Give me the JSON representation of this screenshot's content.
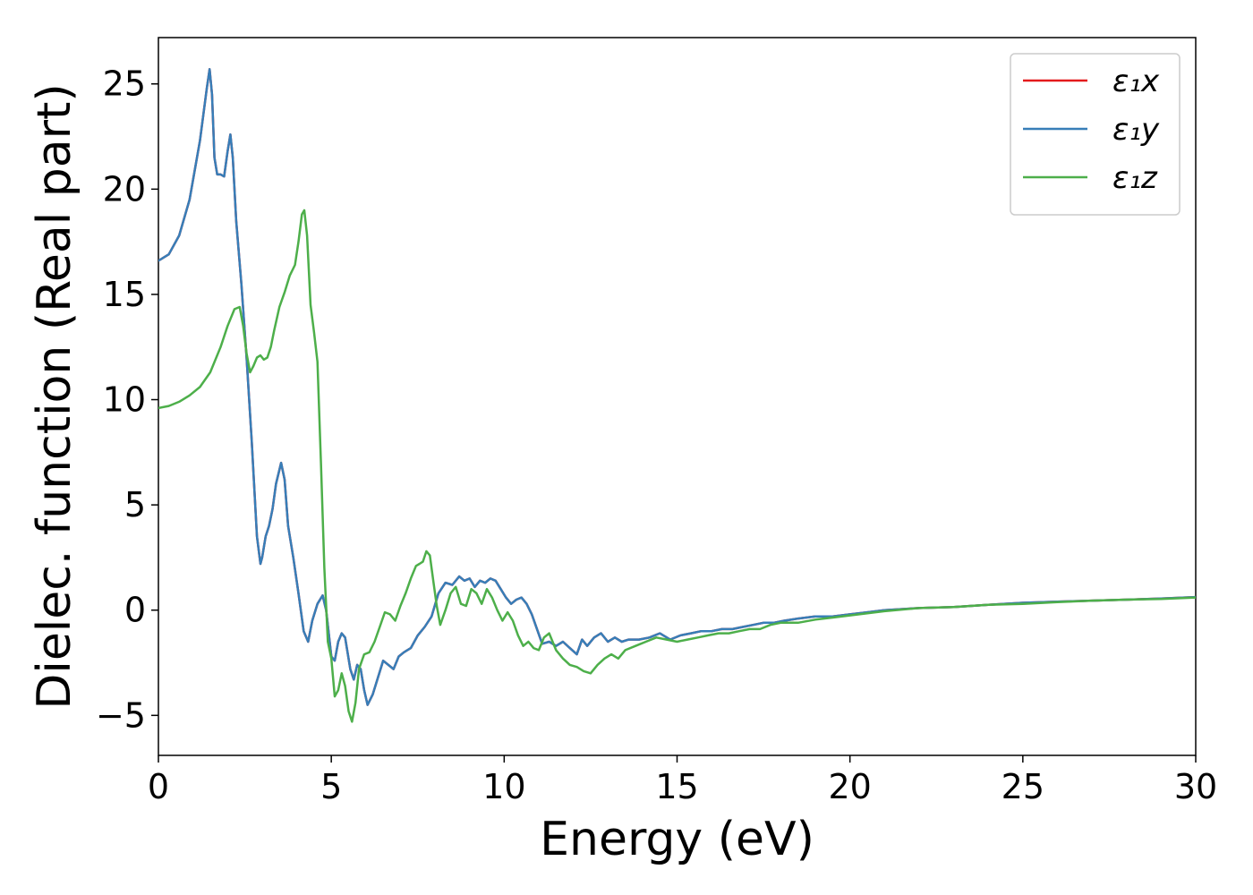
{
  "chart_data": {
    "type": "line",
    "xlabel": "Energy (eV)",
    "ylabel": "Dielec. function (Real part)",
    "xlim": [
      0,
      30
    ],
    "ylim": [
      -6.9,
      27.2
    ],
    "xticks": [
      0,
      5,
      10,
      15,
      20,
      25,
      30
    ],
    "xtick_labels": [
      "0",
      "5",
      "10",
      "15",
      "20",
      "25",
      "30"
    ],
    "yticks": [
      -5,
      0,
      5,
      10,
      15,
      20,
      25
    ],
    "ytick_labels": [
      "−5",
      "0",
      "5",
      "10",
      "15",
      "20",
      "25"
    ],
    "grid": false,
    "legend_position": "top-right",
    "series": [
      {
        "name": "ε₁x",
        "color": "#e41a1c",
        "x": [
          0,
          0.3,
          0.6,
          0.9,
          1.2,
          1.4,
          1.48,
          1.55,
          1.62,
          1.7,
          1.8,
          1.9,
          2.0,
          2.08,
          2.15,
          2.25,
          2.4,
          2.55,
          2.7,
          2.85,
          2.95,
          3.0,
          3.1,
          3.2,
          3.3,
          3.4,
          3.55,
          3.65,
          3.75,
          3.9,
          4.05,
          4.2,
          4.33,
          4.45,
          4.6,
          4.75,
          4.85,
          5.0,
          5.1,
          5.2,
          5.3,
          5.4,
          5.55,
          5.65,
          5.75,
          5.85,
          5.95,
          6.05,
          6.2,
          6.35,
          6.5,
          6.65,
          6.8,
          6.95,
          7.1,
          7.3,
          7.5,
          7.7,
          7.9,
          8.1,
          8.3,
          8.5,
          8.7,
          8.85,
          9.0,
          9.15,
          9.3,
          9.45,
          9.6,
          9.75,
          9.9,
          10.05,
          10.2,
          10.35,
          10.5,
          10.65,
          10.8,
          10.95,
          11.1,
          11.3,
          11.5,
          11.7,
          11.9,
          12.1,
          12.25,
          12.4,
          12.6,
          12.8,
          13.0,
          13.2,
          13.4,
          13.6,
          13.9,
          14.2,
          14.5,
          14.8,
          15.1,
          15.4,
          15.7,
          16.0,
          16.3,
          16.6,
          16.9,
          17.2,
          17.5,
          17.8,
          18.1,
          18.5,
          19.0,
          19.5,
          20.0,
          20.5,
          21.0,
          22.0,
          23.0,
          24.0,
          25.0,
          26.0,
          27.0,
          28.0,
          29.0,
          30.0
        ],
        "y": [
          16.6,
          16.9,
          17.8,
          19.5,
          22.3,
          24.8,
          25.7,
          24.5,
          21.5,
          20.7,
          20.7,
          20.6,
          21.8,
          22.6,
          21.5,
          18.5,
          15.5,
          12.0,
          8.0,
          3.5,
          2.2,
          2.5,
          3.5,
          4.0,
          4.8,
          6.0,
          7.0,
          6.2,
          4.0,
          2.5,
          0.8,
          -1.0,
          -1.5,
          -0.5,
          0.3,
          0.7,
          0.0,
          -2.2,
          -2.4,
          -1.5,
          -1.1,
          -1.3,
          -2.8,
          -3.3,
          -2.6,
          -2.8,
          -3.8,
          -4.5,
          -4.0,
          -3.2,
          -2.4,
          -2.6,
          -2.8,
          -2.2,
          -2.0,
          -1.8,
          -1.2,
          -0.8,
          -0.3,
          0.8,
          1.3,
          1.2,
          1.6,
          1.4,
          1.5,
          1.1,
          1.4,
          1.3,
          1.5,
          1.4,
          1.0,
          0.6,
          0.3,
          0.5,
          0.6,
          0.3,
          -0.2,
          -0.9,
          -1.6,
          -1.5,
          -1.7,
          -1.5,
          -1.8,
          -2.1,
          -1.4,
          -1.7,
          -1.3,
          -1.1,
          -1.5,
          -1.3,
          -1.5,
          -1.4,
          -1.4,
          -1.3,
          -1.1,
          -1.4,
          -1.2,
          -1.1,
          -1.0,
          -1.0,
          -0.9,
          -0.9,
          -0.8,
          -0.7,
          -0.6,
          -0.6,
          -0.5,
          -0.4,
          -0.3,
          -0.3,
          -0.2,
          -0.1,
          -0.0,
          0.1,
          0.15,
          0.25,
          0.35,
          0.4,
          0.45,
          0.5,
          0.55,
          0.62
        ]
      },
      {
        "name": "ε₁y",
        "color": "#377eb8",
        "x": [
          0,
          0.3,
          0.6,
          0.9,
          1.2,
          1.4,
          1.48,
          1.55,
          1.62,
          1.7,
          1.8,
          1.9,
          2.0,
          2.08,
          2.15,
          2.25,
          2.4,
          2.55,
          2.7,
          2.85,
          2.95,
          3.0,
          3.1,
          3.2,
          3.3,
          3.4,
          3.55,
          3.65,
          3.75,
          3.9,
          4.05,
          4.2,
          4.33,
          4.45,
          4.6,
          4.75,
          4.85,
          5.0,
          5.1,
          5.2,
          5.3,
          5.4,
          5.55,
          5.65,
          5.75,
          5.85,
          5.95,
          6.05,
          6.2,
          6.35,
          6.5,
          6.65,
          6.8,
          6.95,
          7.1,
          7.3,
          7.5,
          7.7,
          7.9,
          8.1,
          8.3,
          8.5,
          8.7,
          8.85,
          9.0,
          9.15,
          9.3,
          9.45,
          9.6,
          9.75,
          9.9,
          10.05,
          10.2,
          10.35,
          10.5,
          10.65,
          10.8,
          10.95,
          11.1,
          11.3,
          11.5,
          11.7,
          11.9,
          12.1,
          12.25,
          12.4,
          12.6,
          12.8,
          13.0,
          13.2,
          13.4,
          13.6,
          13.9,
          14.2,
          14.5,
          14.8,
          15.1,
          15.4,
          15.7,
          16.0,
          16.3,
          16.6,
          16.9,
          17.2,
          17.5,
          17.8,
          18.1,
          18.5,
          19.0,
          19.5,
          20.0,
          20.5,
          21.0,
          22.0,
          23.0,
          24.0,
          25.0,
          26.0,
          27.0,
          28.0,
          29.0,
          30.0
        ],
        "y": [
          16.6,
          16.9,
          17.8,
          19.5,
          22.3,
          24.8,
          25.7,
          24.5,
          21.5,
          20.7,
          20.7,
          20.6,
          21.8,
          22.6,
          21.5,
          18.5,
          15.5,
          12.0,
          8.0,
          3.5,
          2.2,
          2.5,
          3.5,
          4.0,
          4.8,
          6.0,
          7.0,
          6.2,
          4.0,
          2.5,
          0.8,
          -1.0,
          -1.5,
          -0.5,
          0.3,
          0.7,
          0.0,
          -2.2,
          -2.4,
          -1.5,
          -1.1,
          -1.3,
          -2.8,
          -3.3,
          -2.6,
          -2.8,
          -3.8,
          -4.5,
          -4.0,
          -3.2,
          -2.4,
          -2.6,
          -2.8,
          -2.2,
          -2.0,
          -1.8,
          -1.2,
          -0.8,
          -0.3,
          0.8,
          1.3,
          1.2,
          1.6,
          1.4,
          1.5,
          1.1,
          1.4,
          1.3,
          1.5,
          1.4,
          1.0,
          0.6,
          0.3,
          0.5,
          0.6,
          0.3,
          -0.2,
          -0.9,
          -1.6,
          -1.5,
          -1.7,
          -1.5,
          -1.8,
          -2.1,
          -1.4,
          -1.7,
          -1.3,
          -1.1,
          -1.5,
          -1.3,
          -1.5,
          -1.4,
          -1.4,
          -1.3,
          -1.1,
          -1.4,
          -1.2,
          -1.1,
          -1.0,
          -1.0,
          -0.9,
          -0.9,
          -0.8,
          -0.7,
          -0.6,
          -0.6,
          -0.5,
          -0.4,
          -0.3,
          -0.3,
          -0.2,
          -0.1,
          -0.0,
          0.1,
          0.15,
          0.25,
          0.35,
          0.4,
          0.45,
          0.5,
          0.55,
          0.62
        ]
      },
      {
        "name": "ε₁z",
        "color": "#4daf4a",
        "x": [
          0,
          0.3,
          0.6,
          0.9,
          1.2,
          1.5,
          1.8,
          2.0,
          2.2,
          2.35,
          2.45,
          2.55,
          2.65,
          2.75,
          2.85,
          2.95,
          3.05,
          3.15,
          3.25,
          3.35,
          3.5,
          3.65,
          3.8,
          3.95,
          4.05,
          4.15,
          4.22,
          4.3,
          4.4,
          4.5,
          4.6,
          4.7,
          4.8,
          4.9,
          5.0,
          5.1,
          5.2,
          5.3,
          5.4,
          5.5,
          5.6,
          5.7,
          5.8,
          5.95,
          6.1,
          6.25,
          6.4,
          6.55,
          6.7,
          6.85,
          7.0,
          7.15,
          7.3,
          7.45,
          7.55,
          7.65,
          7.75,
          7.85,
          7.95,
          8.05,
          8.15,
          8.3,
          8.45,
          8.6,
          8.75,
          8.9,
          9.05,
          9.2,
          9.35,
          9.5,
          9.65,
          9.8,
          9.95,
          10.1,
          10.25,
          10.4,
          10.55,
          10.7,
          10.85,
          11.0,
          11.15,
          11.3,
          11.5,
          11.7,
          11.9,
          12.1,
          12.3,
          12.5,
          12.7,
          12.9,
          13.1,
          13.3,
          13.5,
          13.8,
          14.1,
          14.4,
          14.7,
          15.0,
          15.3,
          15.6,
          15.9,
          16.2,
          16.5,
          16.8,
          17.1,
          17.4,
          17.7,
          18.0,
          18.5,
          19.0,
          19.5,
          20.0,
          20.5,
          21.0,
          22.0,
          23.0,
          24.0,
          25.0,
          26.0,
          27.0,
          28.0,
          29.0,
          30.0
        ],
        "y": [
          9.6,
          9.7,
          9.9,
          10.2,
          10.6,
          11.3,
          12.5,
          13.5,
          14.3,
          14.4,
          13.5,
          12.2,
          11.3,
          11.6,
          12.0,
          12.1,
          11.9,
          12.0,
          12.5,
          13.3,
          14.4,
          15.1,
          15.9,
          16.4,
          17.5,
          18.8,
          19.0,
          17.8,
          14.5,
          13.2,
          11.8,
          7.0,
          2.0,
          -1.5,
          -2.3,
          -4.1,
          -3.8,
          -3.0,
          -3.6,
          -4.8,
          -5.3,
          -4.4,
          -2.8,
          -2.1,
          -2.0,
          -1.5,
          -0.8,
          -0.1,
          -0.2,
          -0.5,
          0.2,
          0.8,
          1.5,
          2.1,
          2.2,
          2.3,
          2.8,
          2.6,
          1.4,
          0.2,
          -0.7,
          0.0,
          0.8,
          1.1,
          0.3,
          0.2,
          1.0,
          0.8,
          0.3,
          1.0,
          0.6,
          0.0,
          -0.5,
          -0.1,
          -0.5,
          -1.2,
          -1.7,
          -1.5,
          -1.8,
          -1.9,
          -1.3,
          -1.1,
          -1.9,
          -2.3,
          -2.6,
          -2.7,
          -2.9,
          -3.0,
          -2.6,
          -2.3,
          -2.1,
          -2.3,
          -1.9,
          -1.7,
          -1.5,
          -1.3,
          -1.4,
          -1.5,
          -1.4,
          -1.3,
          -1.2,
          -1.1,
          -1.1,
          -1.0,
          -0.9,
          -0.9,
          -0.7,
          -0.6,
          -0.6,
          -0.45,
          -0.35,
          -0.25,
          -0.15,
          -0.05,
          0.1,
          0.15,
          0.25,
          0.3,
          0.38,
          0.45,
          0.5,
          0.53,
          0.6
        ]
      }
    ]
  }
}
